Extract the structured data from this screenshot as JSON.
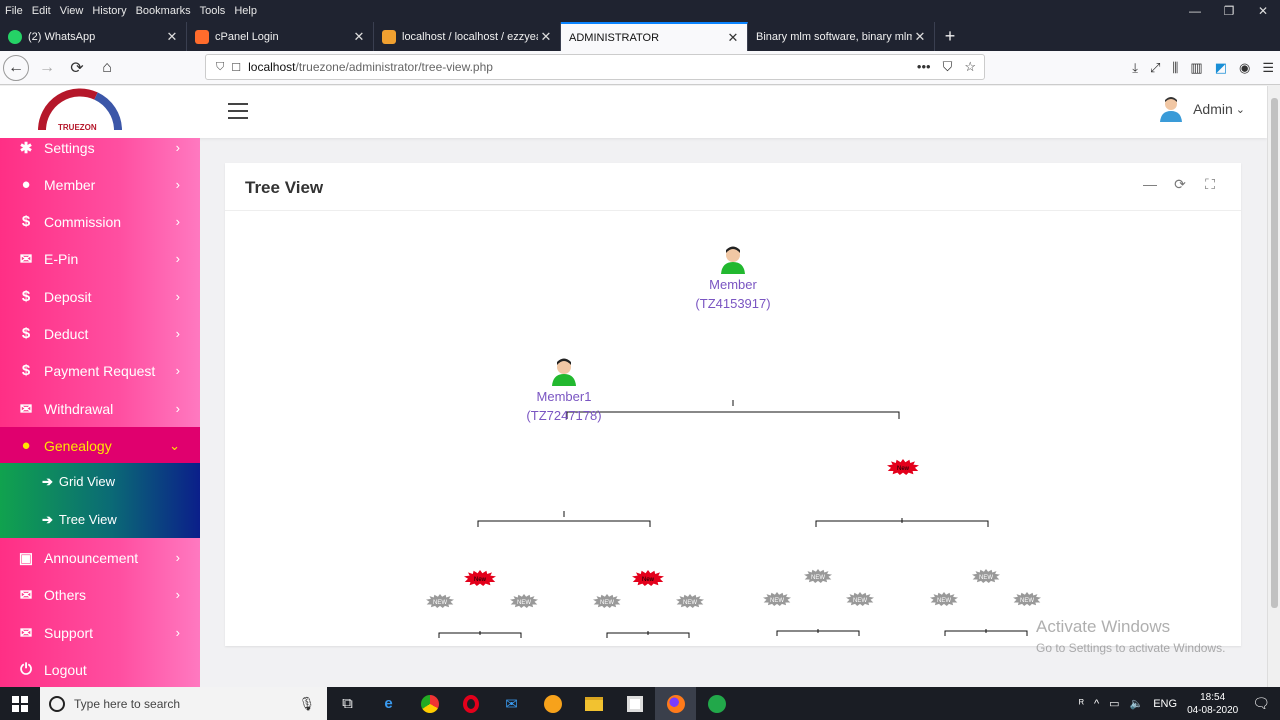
{
  "browser": {
    "menu": [
      "File",
      "Edit",
      "View",
      "History",
      "Bookmarks",
      "Tools",
      "Help"
    ],
    "tabs": [
      {
        "title": "(2) WhatsApp",
        "icon": "whatsapp-icon",
        "color": "#25d366"
      },
      {
        "title": "cPanel Login",
        "icon": "cpanel-icon",
        "color": "#ff6c2c"
      },
      {
        "title": "localhost / localhost / ezzyeam",
        "icon": "phpmyadmin-icon",
        "color": "#f0a030"
      },
      {
        "title": "ADMINISTRATOR",
        "icon": "",
        "color": ""
      },
      {
        "title": "Binary mlm software, binary mlm sc",
        "icon": "",
        "color": ""
      }
    ],
    "url_host": "localhost",
    "url_path": "/truezone/administrator/tree-view.php"
  },
  "app": {
    "logo_text": "TRUEZON",
    "user_label": "Admin"
  },
  "sidebar": {
    "items": [
      {
        "label": "Settings",
        "icon": "gear-icon",
        "glyph": "✱"
      },
      {
        "label": "Member",
        "icon": "users-icon",
        "glyph": "👥"
      },
      {
        "label": "Commission",
        "icon": "dollar-icon",
        "glyph": "$"
      },
      {
        "label": "E-Pin",
        "icon": "envelope-icon",
        "glyph": "✉"
      },
      {
        "label": "Deposit",
        "icon": "dollar-icon",
        "glyph": "$"
      },
      {
        "label": "Deduct",
        "icon": "dollar-icon",
        "glyph": "$"
      },
      {
        "label": "Payment Request",
        "icon": "dollar-icon",
        "glyph": "$"
      },
      {
        "label": "Withdrawal",
        "icon": "envelope-icon",
        "glyph": "✉"
      },
      {
        "label": "Genealogy",
        "icon": "users-icon",
        "glyph": "👥"
      },
      {
        "label": "Announcement",
        "icon": "money-icon",
        "glyph": "▣"
      },
      {
        "label": "Others",
        "icon": "envelope-icon",
        "glyph": "✉"
      },
      {
        "label": "Support",
        "icon": "envelope-icon",
        "glyph": "✉"
      },
      {
        "label": "Logout",
        "icon": "power-icon",
        "glyph": "⏻"
      }
    ],
    "submenu": [
      {
        "label": "Grid View"
      },
      {
        "label": "Tree View"
      }
    ]
  },
  "card": {
    "title": "Tree View"
  },
  "tree": {
    "root": {
      "name": "Member",
      "id": "(TZ4153917)"
    },
    "left": {
      "name": "Member1",
      "id": "(TZ7247178)"
    },
    "badge_label": "New",
    "badge_label_gray": "NEW"
  },
  "watermark": {
    "line1": "Activate Windows",
    "line2": "Go to Settings to activate Windows."
  },
  "taskbar": {
    "search_placeholder": "Type here to search",
    "lang": "ENG",
    "time": "18:54",
    "date": "04-08-2020"
  }
}
